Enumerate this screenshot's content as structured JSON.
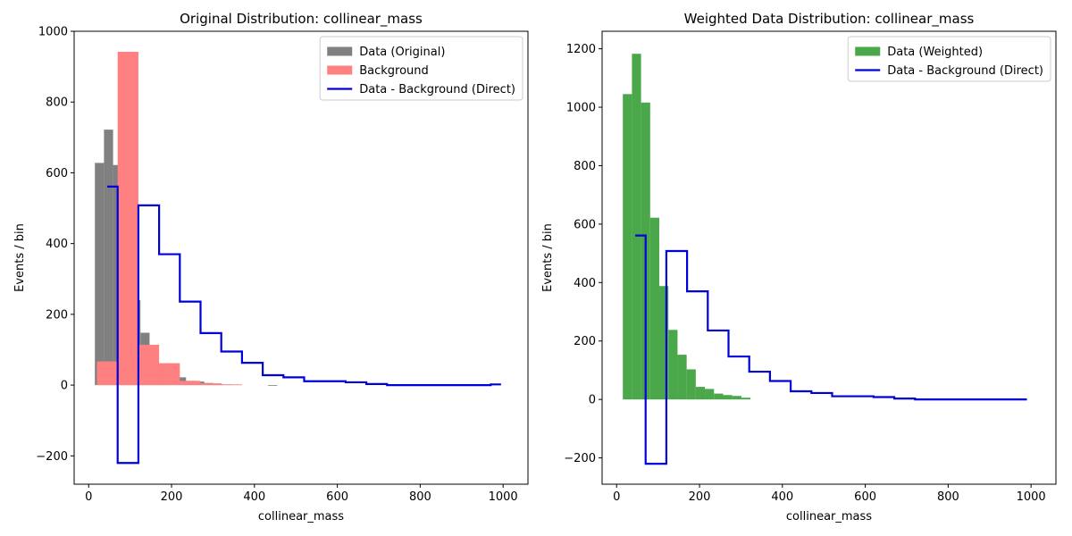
{
  "chart_data": [
    {
      "type": "bar",
      "title": "Original Distribution: collinear_mass",
      "xlabel": "collinear_mass",
      "ylabel": "Events / bin",
      "xlim": [
        -35,
        1060
      ],
      "ylim": [
        -280,
        1000
      ],
      "xticks": [
        0,
        200,
        400,
        600,
        800,
        1000
      ],
      "yticks": [
        -200,
        0,
        200,
        400,
        600,
        800,
        1000
      ],
      "ytick_labels": [
        "−200",
        "0",
        "200",
        "400",
        "600",
        "800",
        "1000"
      ],
      "legend_position": "upper right",
      "series": [
        {
          "name": "Data (Original)",
          "kind": "hist",
          "color": "#808080",
          "bins": [
            [
              15,
              37,
              628
            ],
            [
              37,
              59,
              722
            ],
            [
              59,
              81,
              622
            ],
            [
              81,
              103,
              384
            ],
            [
              103,
              125,
              240
            ],
            [
              125,
              147,
              148
            ],
            [
              147,
              169,
              95
            ],
            [
              169,
              191,
              58
            ],
            [
              191,
              213,
              30
            ],
            [
              213,
              235,
              22
            ],
            [
              235,
              257,
              12
            ],
            [
              257,
              279,
              10
            ],
            [
              279,
              301,
              6
            ],
            [
              301,
              323,
              3
            ],
            [
              323,
              345,
              2
            ],
            [
              345,
              367,
              1
            ],
            [
              433,
              455,
              -2
            ]
          ]
        },
        {
          "name": "Background",
          "kind": "hist",
          "color": "#ff8080",
          "bins": [
            [
              20,
              70,
              67
            ],
            [
              70,
              120,
              942
            ],
            [
              120,
              170,
              114
            ],
            [
              170,
              220,
              62
            ],
            [
              220,
              270,
              12
            ],
            [
              270,
              320,
              5
            ],
            [
              320,
              370,
              2
            ]
          ]
        },
        {
          "name": "Data - Background (Direct)",
          "kind": "step",
          "color": "#0000dd",
          "bins": [
            [
              45,
              70,
              561
            ],
            [
              70,
              120,
              -220
            ],
            [
              120,
              170,
              508
            ],
            [
              170,
              220,
              370
            ],
            [
              220,
              270,
              236
            ],
            [
              270,
              320,
              147
            ],
            [
              320,
              370,
              95
            ],
            [
              370,
              420,
              63
            ],
            [
              420,
              470,
              28
            ],
            [
              470,
              520,
              22
            ],
            [
              520,
              620,
              11
            ],
            [
              620,
              670,
              8
            ],
            [
              670,
              720,
              3
            ],
            [
              720,
              970,
              0
            ],
            [
              970,
              995,
              2
            ]
          ]
        }
      ]
    },
    {
      "type": "bar",
      "title": "Weighted Data Distribution: collinear_mass",
      "xlabel": "collinear_mass",
      "ylabel": "Events / bin",
      "xlim": [
        -35,
        1060
      ],
      "ylim": [
        -290,
        1260
      ],
      "xticks": [
        0,
        200,
        400,
        600,
        800,
        1000
      ],
      "yticks": [
        -200,
        0,
        200,
        400,
        600,
        800,
        1000,
        1200
      ],
      "ytick_labels": [
        "−200",
        "0",
        "200",
        "400",
        "600",
        "800",
        "1000",
        "1200"
      ],
      "legend_position": "upper right",
      "series": [
        {
          "name": "Data (Weighted)",
          "kind": "hist",
          "color": "#4aa74a",
          "bins": [
            [
              15,
              37,
              1045
            ],
            [
              37,
              59,
              1183
            ],
            [
              59,
              81,
              1016
            ],
            [
              81,
              103,
              622
            ],
            [
              103,
              125,
              388
            ],
            [
              125,
              147,
              238
            ],
            [
              147,
              169,
              153
            ],
            [
              169,
              191,
              103
            ],
            [
              191,
              213,
              43
            ],
            [
              213,
              235,
              36
            ],
            [
              235,
              257,
              20
            ],
            [
              257,
              279,
              15
            ],
            [
              279,
              301,
              12
            ],
            [
              301,
              323,
              6
            ]
          ]
        },
        {
          "name": "Data - Background (Direct)",
          "kind": "step",
          "color": "#0000dd",
          "bins": [
            [
              45,
              70,
              561
            ],
            [
              70,
              120,
              -220
            ],
            [
              120,
              170,
              508
            ],
            [
              170,
              220,
              370
            ],
            [
              220,
              270,
              236
            ],
            [
              270,
              320,
              147
            ],
            [
              320,
              370,
              95
            ],
            [
              370,
              420,
              63
            ],
            [
              420,
              470,
              28
            ],
            [
              470,
              520,
              22
            ],
            [
              520,
              620,
              11
            ],
            [
              620,
              670,
              8
            ],
            [
              670,
              720,
              3
            ],
            [
              720,
              990,
              0
            ]
          ]
        }
      ]
    }
  ]
}
